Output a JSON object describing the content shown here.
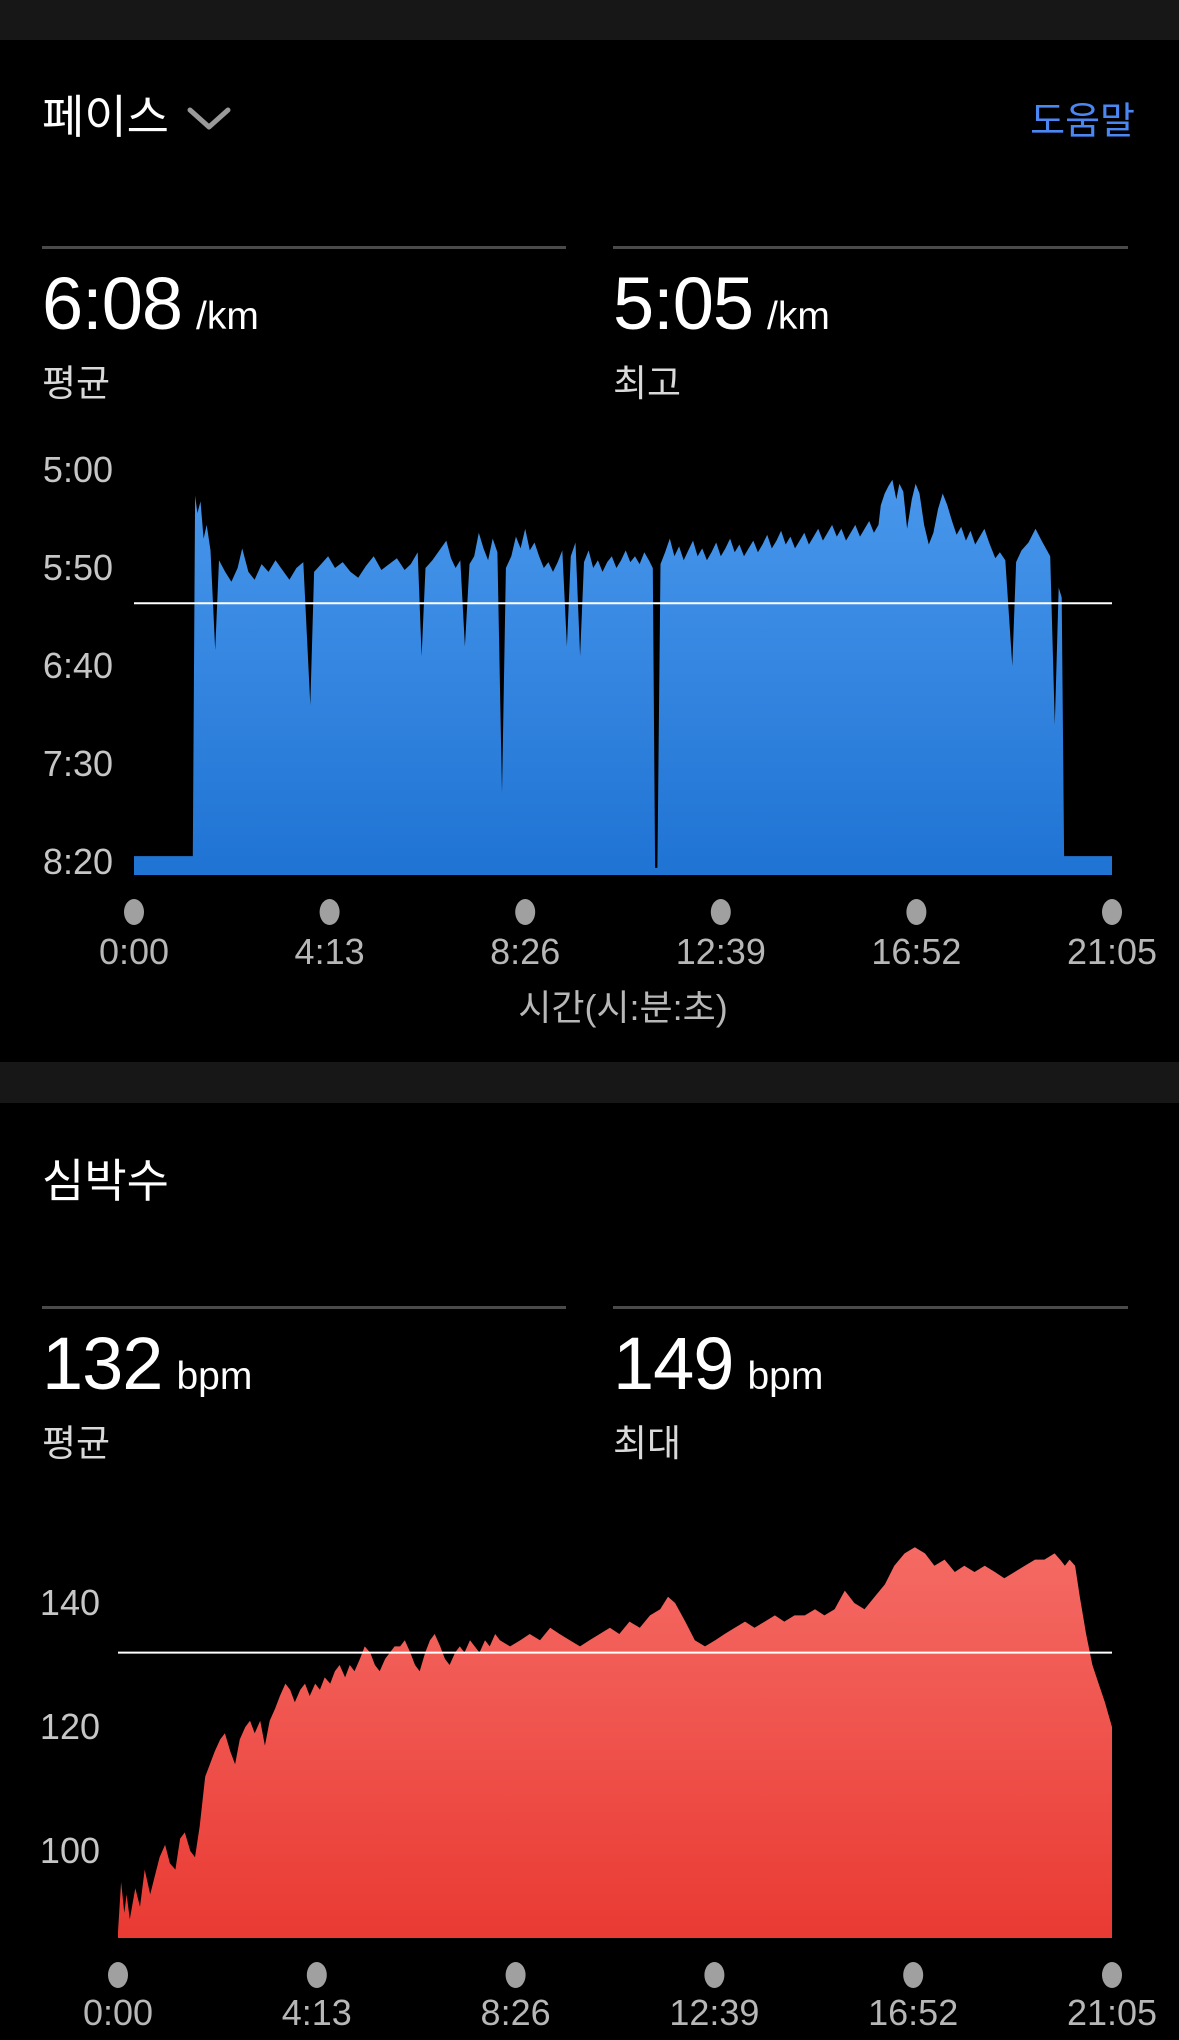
{
  "page": {
    "background": "#000000",
    "strip_color": "#171717"
  },
  "pace_section": {
    "title": "페이스",
    "help_label": "도움말",
    "help_color": "#4b87f2",
    "stats": [
      {
        "value": "6:08",
        "unit": "/km",
        "label": "평균"
      },
      {
        "value": "5:05",
        "unit": "/km",
        "label": "최고"
      }
    ]
  },
  "hr_section": {
    "title": "심박수",
    "stats": [
      {
        "value": "132",
        "unit": "bpm",
        "label": "평균"
      },
      {
        "value": "149",
        "unit": "bpm",
        "label": "최대"
      }
    ]
  },
  "chart_data": [
    {
      "id": "pace",
      "type": "area",
      "title": "페이스",
      "xlabel": "시간(시:분:초)",
      "x_tick_labels": [
        "0:00",
        "4:13",
        "8:26",
        "12:39",
        "16:52",
        "21:05"
      ],
      "x_total_seconds": 1265,
      "y_value_unit": "seconds_per_km",
      "y_axis_note": "pace axis inverted: faster (smaller) on top",
      "y_ticks": [
        {
          "label": "5:00",
          "value": 300
        },
        {
          "label": "5:50",
          "value": 350
        },
        {
          "label": "6:40",
          "value": 400
        },
        {
          "label": "7:30",
          "value": 450
        },
        {
          "label": "8:20",
          "value": 500
        }
      ],
      "average_value": 368,
      "best_value": 305,
      "avg_line_color": "#ffffff",
      "dot_color": "#a0a0a0",
      "fill_top": "#4897ec",
      "fill_bottom": "#1f73d3",
      "points": [
        [
          0,
          497
        ],
        [
          76,
          497
        ],
        [
          79,
          313
        ],
        [
          82,
          322
        ],
        [
          86,
          316
        ],
        [
          90,
          335
        ],
        [
          94,
          328
        ],
        [
          99,
          341
        ],
        [
          105,
          392
        ],
        [
          110,
          346
        ],
        [
          118,
          352
        ],
        [
          126,
          357
        ],
        [
          134,
          350
        ],
        [
          140,
          340
        ],
        [
          148,
          352
        ],
        [
          156,
          356
        ],
        [
          165,
          348
        ],
        [
          174,
          352
        ],
        [
          183,
          346
        ],
        [
          192,
          351
        ],
        [
          201,
          356
        ],
        [
          210,
          350
        ],
        [
          219,
          347
        ],
        [
          228,
          420
        ],
        [
          233,
          352
        ],
        [
          242,
          348
        ],
        [
          251,
          344
        ],
        [
          260,
          350
        ],
        [
          270,
          347
        ],
        [
          280,
          352
        ],
        [
          290,
          355
        ],
        [
          300,
          349
        ],
        [
          310,
          344
        ],
        [
          320,
          351
        ],
        [
          330,
          348
        ],
        [
          340,
          345
        ],
        [
          350,
          351
        ],
        [
          358,
          348
        ],
        [
          367,
          342
        ],
        [
          372,
          395
        ],
        [
          377,
          350
        ],
        [
          386,
          346
        ],
        [
          395,
          341
        ],
        [
          404,
          336
        ],
        [
          410,
          345
        ],
        [
          416,
          350
        ],
        [
          422,
          346
        ],
        [
          428,
          390
        ],
        [
          434,
          348
        ],
        [
          440,
          344
        ],
        [
          446,
          332
        ],
        [
          452,
          340
        ],
        [
          458,
          346
        ],
        [
          464,
          335
        ],
        [
          470,
          342
        ],
        [
          476,
          465
        ],
        [
          481,
          350
        ],
        [
          488,
          344
        ],
        [
          494,
          334
        ],
        [
          500,
          340
        ],
        [
          506,
          330
        ],
        [
          512,
          341
        ],
        [
          518,
          337
        ],
        [
          524,
          344
        ],
        [
          530,
          350
        ],
        [
          536,
          347
        ],
        [
          542,
          352
        ],
        [
          548,
          347
        ],
        [
          554,
          341
        ],
        [
          560,
          390
        ],
        [
          565,
          344
        ],
        [
          571,
          337
        ],
        [
          577,
          395
        ],
        [
          582,
          347
        ],
        [
          588,
          341
        ],
        [
          594,
          350
        ],
        [
          600,
          346
        ],
        [
          606,
          352
        ],
        [
          612,
          347
        ],
        [
          618,
          344
        ],
        [
          624,
          350
        ],
        [
          630,
          346
        ],
        [
          636,
          341
        ],
        [
          642,
          347
        ],
        [
          648,
          344
        ],
        [
          654,
          348
        ],
        [
          660,
          342
        ],
        [
          666,
          346
        ],
        [
          671,
          350
        ],
        [
          674,
          503
        ],
        [
          677,
          503
        ],
        [
          681,
          348
        ],
        [
          687,
          342
        ],
        [
          693,
          335
        ],
        [
          699,
          344
        ],
        [
          705,
          339
        ],
        [
          711,
          346
        ],
        [
          717,
          341
        ],
        [
          723,
          336
        ],
        [
          729,
          344
        ],
        [
          735,
          340
        ],
        [
          741,
          346
        ],
        [
          747,
          342
        ],
        [
          753,
          337
        ],
        [
          759,
          344
        ],
        [
          765,
          340
        ],
        [
          771,
          335
        ],
        [
          777,
          342
        ],
        [
          783,
          338
        ],
        [
          789,
          344
        ],
        [
          795,
          340
        ],
        [
          801,
          336
        ],
        [
          807,
          342
        ],
        [
          813,
          338
        ],
        [
          819,
          333
        ],
        [
          825,
          340
        ],
        [
          831,
          336
        ],
        [
          837,
          331
        ],
        [
          843,
          338
        ],
        [
          849,
          334
        ],
        [
          855,
          340
        ],
        [
          861,
          336
        ],
        [
          867,
          332
        ],
        [
          873,
          338
        ],
        [
          879,
          334
        ],
        [
          885,
          330
        ],
        [
          891,
          336
        ],
        [
          897,
          332
        ],
        [
          903,
          328
        ],
        [
          909,
          334
        ],
        [
          915,
          330
        ],
        [
          921,
          336
        ],
        [
          927,
          332
        ],
        [
          933,
          328
        ],
        [
          939,
          334
        ],
        [
          945,
          330
        ],
        [
          951,
          326
        ],
        [
          957,
          332
        ],
        [
          963,
          328
        ],
        [
          966,
          318
        ],
        [
          971,
          312
        ],
        [
          976,
          308
        ],
        [
          981,
          305
        ],
        [
          986,
          315
        ],
        [
          990,
          307
        ],
        [
          995,
          311
        ],
        [
          1000,
          330
        ],
        [
          1006,
          315
        ],
        [
          1011,
          307
        ],
        [
          1016,
          312
        ],
        [
          1022,
          328
        ],
        [
          1028,
          338
        ],
        [
          1034,
          332
        ],
        [
          1040,
          320
        ],
        [
          1046,
          312
        ],
        [
          1052,
          318
        ],
        [
          1058,
          326
        ],
        [
          1064,
          333
        ],
        [
          1070,
          329
        ],
        [
          1076,
          336
        ],
        [
          1082,
          331
        ],
        [
          1088,
          338
        ],
        [
          1094,
          334
        ],
        [
          1100,
          330
        ],
        [
          1106,
          337
        ],
        [
          1114,
          345
        ],
        [
          1120,
          342
        ],
        [
          1127,
          346
        ],
        [
          1136,
          400
        ],
        [
          1141,
          347
        ],
        [
          1148,
          341
        ],
        [
          1157,
          337
        ],
        [
          1166,
          330
        ],
        [
          1174,
          336
        ],
        [
          1185,
          344
        ],
        [
          1191,
          430
        ],
        [
          1196,
          360
        ],
        [
          1200,
          365
        ],
        [
          1203,
          497
        ],
        [
          1265,
          497
        ]
      ]
    },
    {
      "id": "hr",
      "type": "area",
      "title": "심박수",
      "xlabel": "",
      "x_tick_labels": [
        "0:00",
        "4:13",
        "8:26",
        "12:39",
        "16:52",
        "21:05"
      ],
      "x_total_seconds": 1265,
      "y_value_unit": "bpm",
      "y_ticks": [
        {
          "label": "140",
          "value": 140
        },
        {
          "label": "120",
          "value": 120
        },
        {
          "label": "100",
          "value": 100
        }
      ],
      "average_value": 132,
      "max_value": 149,
      "avg_line_color": "#ffffff",
      "dot_color": "#a0a0a0",
      "fill_top": "#f56a64",
      "fill_bottom": "#e93a33",
      "points": [
        [
          0,
          87
        ],
        [
          4,
          95
        ],
        [
          8,
          90
        ],
        [
          11,
          93
        ],
        [
          15,
          89
        ],
        [
          22,
          94
        ],
        [
          28,
          91
        ],
        [
          34,
          97
        ],
        [
          41,
          93
        ],
        [
          47,
          96
        ],
        [
          53,
          99
        ],
        [
          60,
          101
        ],
        [
          66,
          98
        ],
        [
          73,
          97
        ],
        [
          79,
          102
        ],
        [
          85,
          103
        ],
        [
          92,
          100
        ],
        [
          98,
          99
        ],
        [
          104,
          104
        ],
        [
          111,
          112
        ],
        [
          117,
          114
        ],
        [
          123,
          116
        ],
        [
          130,
          118
        ],
        [
          136,
          119
        ],
        [
          143,
          116
        ],
        [
          149,
          114
        ],
        [
          155,
          118
        ],
        [
          162,
          120
        ],
        [
          168,
          121
        ],
        [
          174,
          119
        ],
        [
          181,
          121
        ],
        [
          187,
          117
        ],
        [
          193,
          121
        ],
        [
          200,
          123
        ],
        [
          206,
          125
        ],
        [
          213,
          127
        ],
        [
          219,
          126
        ],
        [
          225,
          124
        ],
        [
          232,
          126
        ],
        [
          238,
          127
        ],
        [
          244,
          125
        ],
        [
          251,
          127
        ],
        [
          257,
          126
        ],
        [
          263,
          128
        ],
        [
          270,
          127
        ],
        [
          276,
          129
        ],
        [
          282,
          130
        ],
        [
          289,
          128
        ],
        [
          295,
          130
        ],
        [
          301,
          129
        ],
        [
          308,
          131
        ],
        [
          314,
          133
        ],
        [
          321,
          132
        ],
        [
          327,
          130
        ],
        [
          333,
          129
        ],
        [
          340,
          131
        ],
        [
          346,
          132
        ],
        [
          352,
          133
        ],
        [
          359,
          133
        ],
        [
          365,
          134
        ],
        [
          372,
          132
        ],
        [
          378,
          130
        ],
        [
          384,
          129
        ],
        [
          391,
          132
        ],
        [
          397,
          134
        ],
        [
          403,
          135
        ],
        [
          410,
          133
        ],
        [
          416,
          131
        ],
        [
          422,
          130
        ],
        [
          429,
          132
        ],
        [
          435,
          133
        ],
        [
          441,
          132
        ],
        [
          448,
          134
        ],
        [
          454,
          133
        ],
        [
          460,
          132
        ],
        [
          467,
          134
        ],
        [
          473,
          133
        ],
        [
          480,
          135
        ],
        [
          486,
          134
        ],
        [
          499,
          133
        ],
        [
          512,
          134
        ],
        [
          524,
          135
        ],
        [
          537,
          134
        ],
        [
          550,
          136
        ],
        [
          562,
          135
        ],
        [
          575,
          134
        ],
        [
          588,
          133
        ],
        [
          600,
          134
        ],
        [
          613,
          135
        ],
        [
          626,
          136
        ],
        [
          638,
          135
        ],
        [
          651,
          137
        ],
        [
          664,
          136
        ],
        [
          677,
          138
        ],
        [
          690,
          139
        ],
        [
          700,
          141
        ],
        [
          709,
          140
        ],
        [
          722,
          137
        ],
        [
          734,
          134
        ],
        [
          747,
          133
        ],
        [
          760,
          134
        ],
        [
          772,
          135
        ],
        [
          785,
          136
        ],
        [
          798,
          137
        ],
        [
          810,
          136
        ],
        [
          823,
          137
        ],
        [
          836,
          138
        ],
        [
          848,
          137
        ],
        [
          861,
          138
        ],
        [
          874,
          138
        ],
        [
          887,
          139
        ],
        [
          899,
          138
        ],
        [
          912,
          139
        ],
        [
          925,
          142
        ],
        [
          937,
          140
        ],
        [
          950,
          139
        ],
        [
          963,
          141
        ],
        [
          976,
          143
        ],
        [
          988,
          146
        ],
        [
          1001,
          148
        ],
        [
          1014,
          149
        ],
        [
          1027,
          148
        ],
        [
          1039,
          146
        ],
        [
          1052,
          147
        ],
        [
          1065,
          145
        ],
        [
          1077,
          146
        ],
        [
          1090,
          145
        ],
        [
          1103,
          146
        ],
        [
          1116,
          145
        ],
        [
          1128,
          144
        ],
        [
          1141,
          145
        ],
        [
          1154,
          146
        ],
        [
          1167,
          147
        ],
        [
          1179,
          147
        ],
        [
          1192,
          148
        ],
        [
          1199,
          147
        ],
        [
          1205,
          146
        ],
        [
          1211,
          147
        ],
        [
          1218,
          146
        ],
        [
          1224,
          141
        ],
        [
          1232,
          135
        ],
        [
          1240,
          130
        ],
        [
          1248,
          127
        ],
        [
          1256,
          124
        ],
        [
          1265,
          120
        ]
      ]
    }
  ]
}
